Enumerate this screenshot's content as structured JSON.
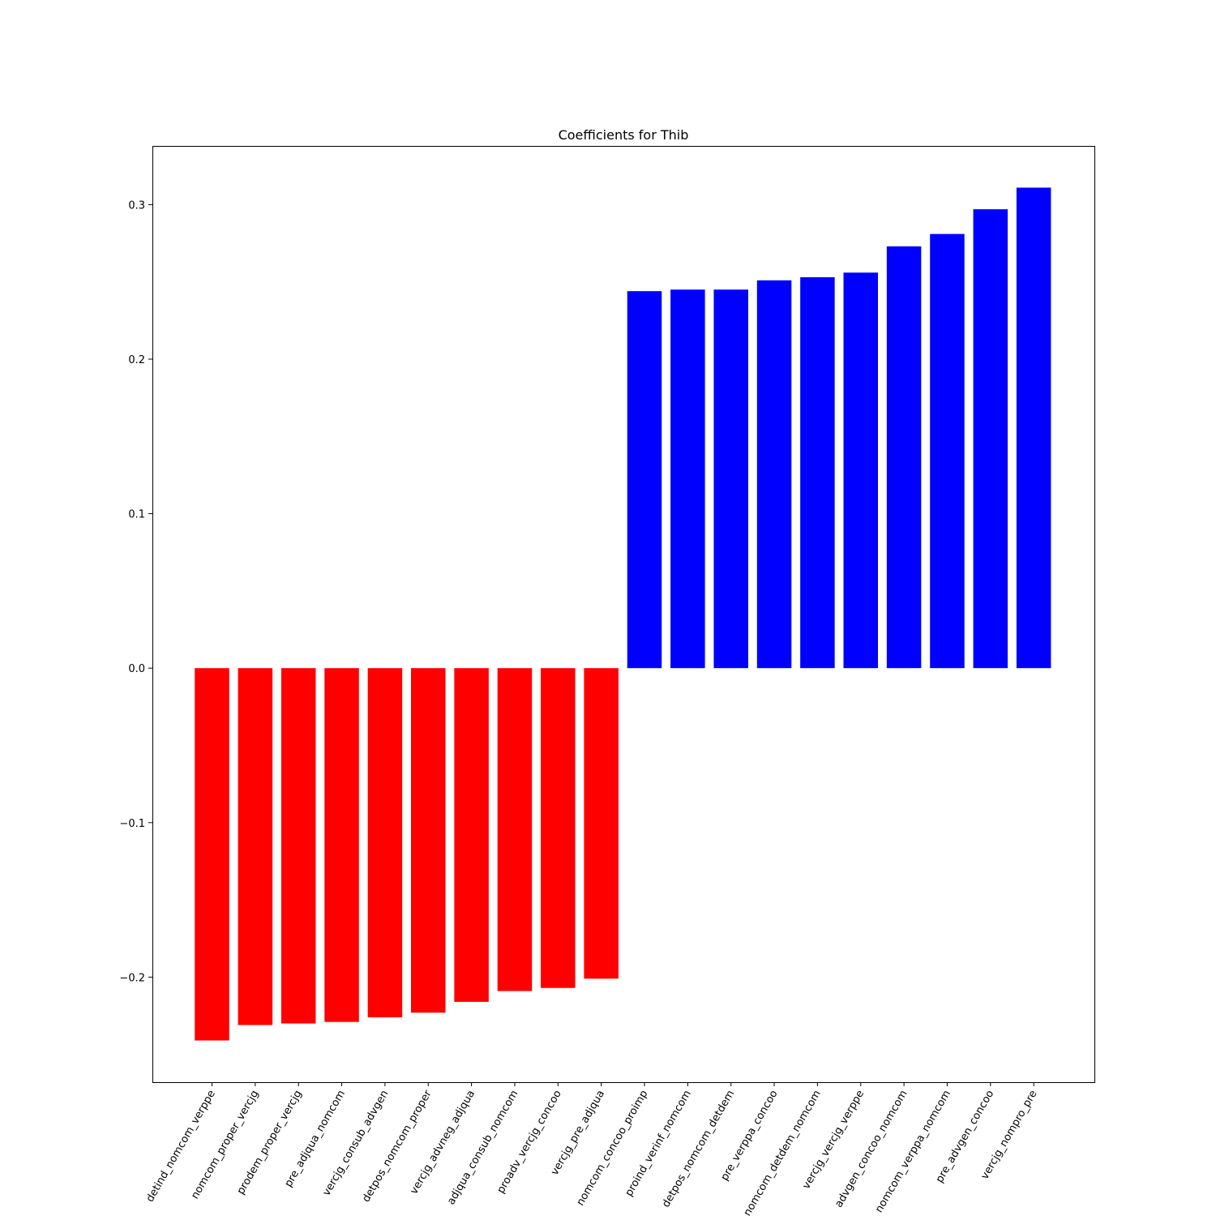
{
  "chart_data": {
    "type": "bar",
    "title": "Coefficients for Thib",
    "xlabel": "",
    "ylabel": "",
    "ylim": [
      -0.268,
      0.338
    ],
    "yticks": [
      -0.2,
      -0.1,
      0.0,
      0.1,
      0.2,
      0.3
    ],
    "ytick_labels": [
      "−0.2",
      "−0.1",
      "0.0",
      "0.1",
      "0.2",
      "0.3"
    ],
    "grid": false,
    "colors": {
      "negative": "#ff0000",
      "positive": "#0000ff"
    },
    "categories": [
      "detind_nomcom_verppe",
      "nomcom_proper_vercjg",
      "prodem_proper_vercjg",
      "pre_adjqua_nomcom",
      "vercjg_consub_advgen",
      "detpos_nomcom_proper",
      "vercjg_advneg_adjqua",
      "adjqua_consub_nomcom",
      "proadv_vercjg_concoo",
      "vercjg_pre_adjqua",
      "nomcom_concoo_proimp",
      "proind_verinf_nomcom",
      "detpos_nomcom_detdem",
      "pre_verppa_concoo",
      "nomcom_detdem_nomcom",
      "vercjg_vercjg_verppe",
      "advgen_concoo_nomcom",
      "nomcom_verppa_nomcom",
      "pre_advgen_concoo",
      "vercjg_nompro_pre"
    ],
    "values": [
      -0.241,
      -0.231,
      -0.23,
      -0.229,
      -0.226,
      -0.223,
      -0.216,
      -0.209,
      -0.207,
      -0.201,
      0.244,
      0.245,
      0.245,
      0.251,
      0.253,
      0.256,
      0.273,
      0.281,
      0.297,
      0.311
    ]
  }
}
